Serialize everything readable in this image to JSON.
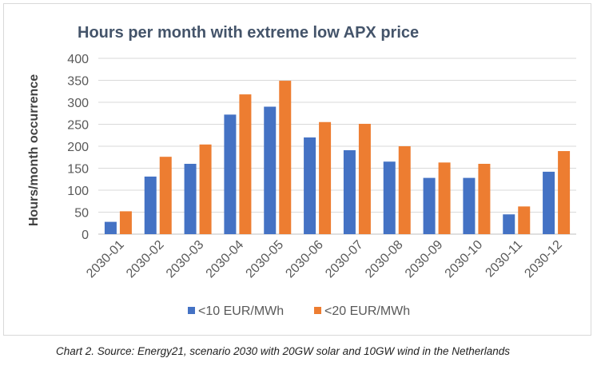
{
  "chart_data": {
    "type": "bar",
    "title": "Hours per month with extreme low APX price",
    "xlabel": "",
    "ylabel": "Hours/month occurrence",
    "ylim": [
      0,
      400
    ],
    "yticks": [
      0,
      50,
      100,
      150,
      200,
      250,
      300,
      350,
      400
    ],
    "grid": true,
    "legend_position": "bottom",
    "categories": [
      "2030-01",
      "2030-02",
      "2030-03",
      "2030-04",
      "2030-05",
      "2030-06",
      "2030-07",
      "2030-08",
      "2030-09",
      "2030-10",
      "2030-11",
      "2030-12"
    ],
    "series": [
      {
        "name": "<10 EUR/MWh",
        "color": "#4472c4",
        "values": [
          28,
          131,
          160,
          272,
          290,
          220,
          191,
          165,
          128,
          128,
          45,
          142
        ]
      },
      {
        "name": "<20 EUR/MWh",
        "color": "#ed7d31",
        "values": [
          52,
          176,
          204,
          318,
          349,
          255,
          251,
          200,
          163,
          160,
          63,
          189
        ]
      }
    ]
  },
  "caption": "Chart 2. Source: Energy21, scenario 2030 with 20GW solar and 10GW wind in the Netherlands"
}
